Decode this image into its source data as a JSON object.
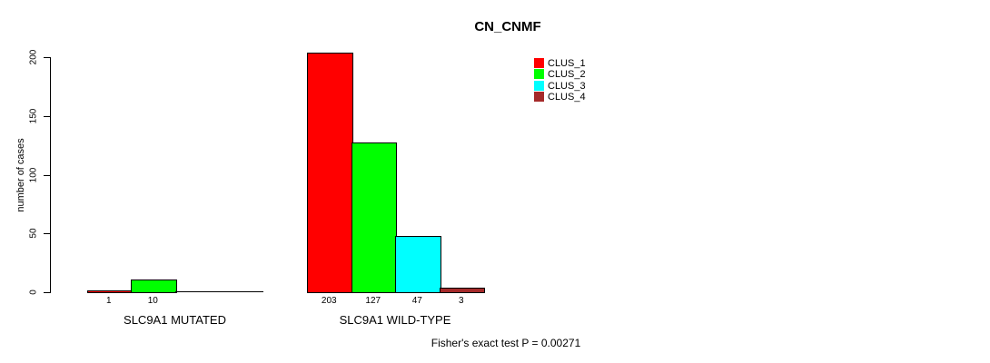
{
  "title": "CN_CNMF",
  "footer": "Fisher's exact test P = 0.00271",
  "legend": [
    {
      "label": "CLUS_1",
      "color": "#FF0000"
    },
    {
      "label": "CLUS_2",
      "color": "#00FF00"
    },
    {
      "label": "CLUS_3",
      "color": "#00FFFF"
    },
    {
      "label": "CLUS_4",
      "color": "#A52A2A"
    }
  ],
  "chart_data": {
    "type": "bar",
    "title": "CN_CNMF",
    "xlabel": "",
    "ylabel": "number of cases",
    "ylim": [
      0,
      200
    ],
    "yticks": [
      0,
      50,
      100,
      150,
      200
    ],
    "grid": false,
    "legend_position": "topright",
    "categories": [
      "SLC9A1 MUTATED",
      "SLC9A1 WILD-TYPE"
    ],
    "series": [
      {
        "name": "CLUS_1",
        "color": "#FF0000",
        "values": [
          1,
          203
        ],
        "labels": [
          "1",
          "203"
        ]
      },
      {
        "name": "CLUS_2",
        "color": "#00FF00",
        "values": [
          10,
          127
        ],
        "labels": [
          "10",
          "127"
        ]
      },
      {
        "name": "CLUS_3",
        "color": "#00FFFF",
        "values": [
          0,
          47
        ],
        "labels": [
          "",
          "47"
        ]
      },
      {
        "name": "CLUS_4",
        "color": "#A52A2A",
        "values": [
          0,
          3
        ],
        "labels": [
          "",
          "3"
        ]
      }
    ],
    "annotation": "Fisher's exact test P = 0.00271"
  }
}
